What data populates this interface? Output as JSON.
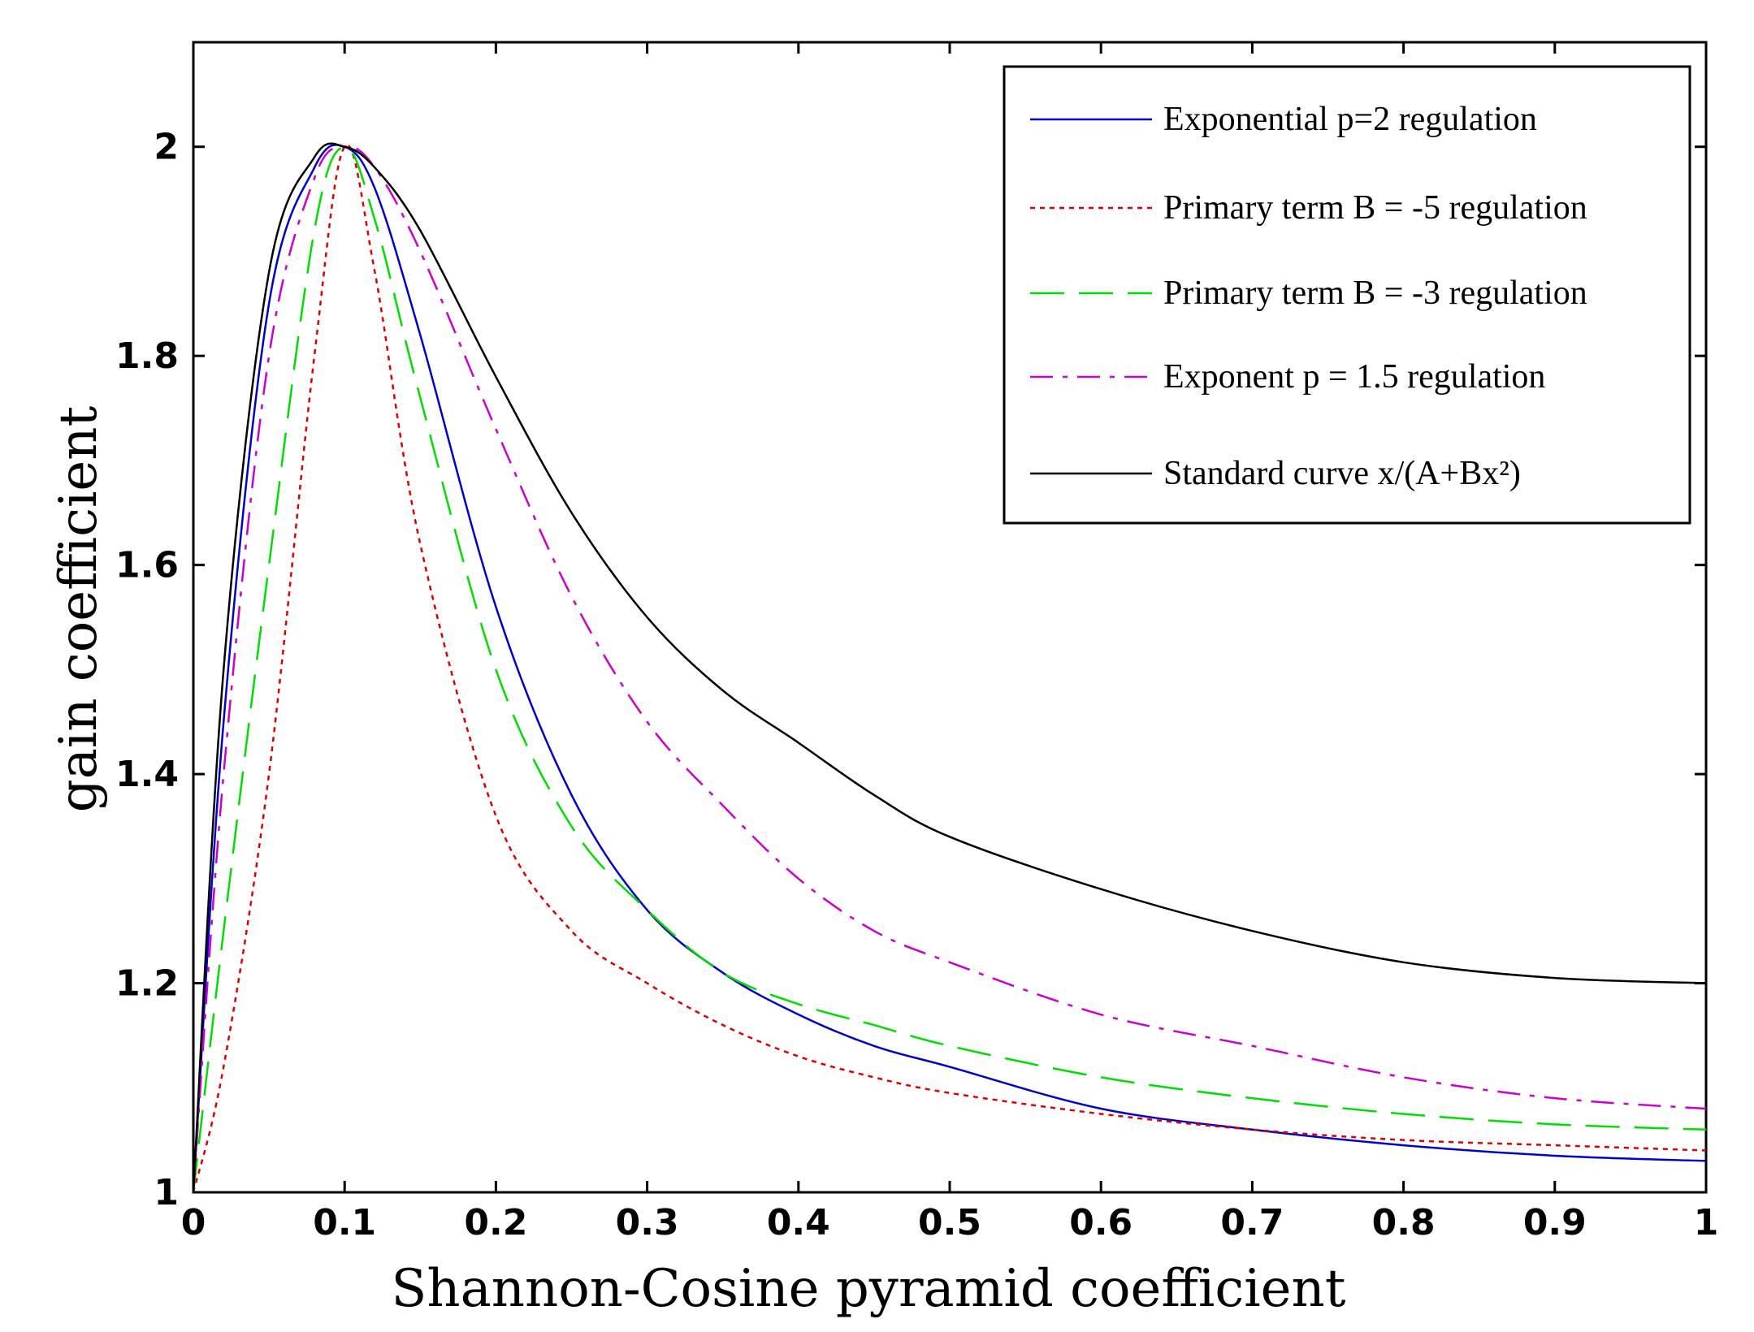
{
  "chart_data": {
    "type": "line",
    "xlabel": "Shannon-Cosine pyramid coefficient",
    "ylabel": "gain coefficient",
    "xlim": [
      0,
      1
    ],
    "ylim": [
      1,
      2.1
    ],
    "grid": false,
    "legend_position": "top-right",
    "x_ticks": [
      "0",
      "0.1",
      "0.2",
      "0.3",
      "0.4",
      "0.5",
      "0.6",
      "0.7",
      "0.8",
      "0.9",
      "1"
    ],
    "y_ticks": [
      "1",
      "1.2",
      "1.4",
      "1.6",
      "1.8",
      "2"
    ],
    "x": [
      0,
      0.02,
      0.05,
      0.08,
      0.1,
      0.12,
      0.15,
      0.2,
      0.25,
      0.3,
      0.35,
      0.4,
      0.45,
      0.5,
      0.6,
      0.7,
      0.8,
      0.9,
      1.0
    ],
    "series": [
      {
        "name": "Exponential p=2 regulation",
        "color": "#0000cc",
        "dash": "solid",
        "values": [
          1.0,
          1.45,
          1.85,
          1.98,
          2.0,
          1.96,
          1.82,
          1.56,
          1.38,
          1.27,
          1.21,
          1.17,
          1.14,
          1.12,
          1.08,
          1.06,
          1.045,
          1.035,
          1.03
        ]
      },
      {
        "name": "Primary term B = -5 regulation",
        "color": "#dd0000",
        "dash": "dotted",
        "values": [
          1.0,
          1.12,
          1.4,
          1.8,
          2.0,
          1.88,
          1.62,
          1.36,
          1.25,
          1.2,
          1.16,
          1.13,
          1.11,
          1.095,
          1.075,
          1.06,
          1.05,
          1.045,
          1.04
        ]
      },
      {
        "name": "Primary term B = -3 regulation",
        "color": "#00dd00",
        "dash": "dashed",
        "values": [
          1.0,
          1.25,
          1.6,
          1.92,
          2.0,
          1.93,
          1.76,
          1.5,
          1.35,
          1.27,
          1.21,
          1.18,
          1.16,
          1.14,
          1.11,
          1.09,
          1.075,
          1.065,
          1.06
        ]
      },
      {
        "name": "Exponent p = 1.5 regulation",
        "color": "#cc00cc",
        "dash": "dashdot",
        "values": [
          1.0,
          1.4,
          1.8,
          1.97,
          2.0,
          1.98,
          1.9,
          1.73,
          1.57,
          1.45,
          1.37,
          1.3,
          1.25,
          1.22,
          1.17,
          1.14,
          1.11,
          1.09,
          1.08
        ]
      },
      {
        "name": "Standard curve x/(A+Bx²)",
        "color": "#000000",
        "dash": "solid",
        "values": [
          1.0,
          1.5,
          1.88,
          1.99,
          2.0,
          1.98,
          1.92,
          1.78,
          1.65,
          1.55,
          1.48,
          1.43,
          1.38,
          1.34,
          1.29,
          1.25,
          1.22,
          1.205,
          1.2
        ]
      }
    ]
  }
}
